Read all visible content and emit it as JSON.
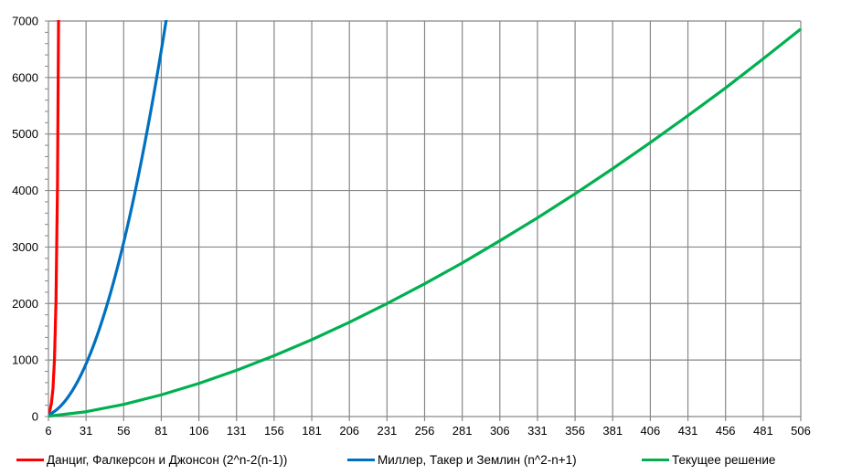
{
  "chart_data": {
    "type": "line",
    "title": "",
    "xlabel": "",
    "ylabel": "",
    "x_tick_labels": [
      "6",
      "31",
      "56",
      "81",
      "106",
      "131",
      "156",
      "181",
      "206",
      "231",
      "256",
      "281",
      "306",
      "331",
      "356",
      "381",
      "406",
      "431",
      "456",
      "481",
      "506"
    ],
    "y_tick_labels": [
      "0",
      "1000",
      "2000",
      "3000",
      "4000",
      "5000",
      "6000",
      "7000"
    ],
    "xlim": [
      6,
      506
    ],
    "ylim": [
      0,
      7000
    ],
    "y_minor_step": 200,
    "grid": true,
    "legend_position": "bottom",
    "series": [
      {
        "name": "Данциг, Фалкерсон и Джонсон (2^n-2(n-1))",
        "color": "#ff0000",
        "x": [
          6,
          7,
          8,
          9,
          10,
          11,
          12,
          13
        ],
        "values": [
          54,
          113,
          240,
          495,
          1006,
          2026,
          4074,
          8168
        ]
      },
      {
        "name": "Миллер, Такер и Землин (n^2-n+1)",
        "color": "#0070c0",
        "x": [
          6,
          8,
          10,
          12,
          14,
          16,
          18,
          20,
          22,
          24,
          26,
          28,
          30,
          32,
          34,
          36,
          38,
          40,
          42,
          44,
          46,
          48,
          50,
          52,
          54,
          56,
          58,
          60,
          62,
          64,
          66,
          68,
          70,
          72,
          74,
          76,
          78,
          80,
          82,
          84,
          86
        ],
        "values": [
          31,
          57,
          91,
          133,
          183,
          241,
          307,
          381,
          463,
          553,
          651,
          757,
          871,
          993,
          1123,
          1261,
          1407,
          1561,
          1723,
          1893,
          2071,
          2257,
          2451,
          2653,
          2863,
          3081,
          3307,
          3541,
          3783,
          4033,
          4291,
          4557,
          4831,
          5113,
          5403,
          5701,
          6007,
          6321,
          6643,
          6973,
          7311
        ]
      },
      {
        "name": "Текущее решение",
        "color": "#00b050",
        "x": [
          6,
          31,
          56,
          81,
          106,
          131,
          156,
          181,
          206,
          231,
          256,
          281,
          306,
          331,
          356,
          381,
          406,
          431,
          456,
          481,
          506
        ],
        "values": [
          6,
          85,
          215,
          384,
          586,
          818,
          1077,
          1360,
          1668,
          2000,
          2349,
          2718,
          3111,
          3517,
          3942,
          4387,
          4848,
          5325,
          5815,
          6331,
          6858
        ]
      }
    ]
  }
}
